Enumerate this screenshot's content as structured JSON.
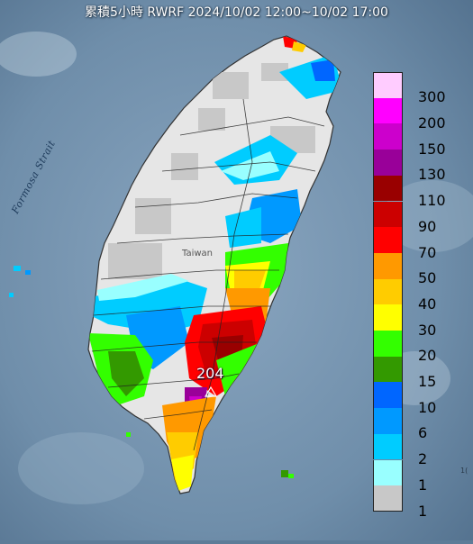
{
  "title": "累積5小時 RWRF 2024/10/02 12:00~10/02 17:00",
  "labels": {
    "strait": "Formosa Strait",
    "island": "Taiwan",
    "peak_value": "204",
    "edge_fragment": "1("
  },
  "legend": [
    {
      "label": "300",
      "color": "#ffccff"
    },
    {
      "label": "200",
      "color": "#ff00ff"
    },
    {
      "label": "150",
      "color": "#cc00cc"
    },
    {
      "label": "130",
      "color": "#990099"
    },
    {
      "label": "110",
      "color": "#990000"
    },
    {
      "label": "90",
      "color": "#cc0000"
    },
    {
      "label": "70",
      "color": "#ff0000"
    },
    {
      "label": "50",
      "color": "#ff9900"
    },
    {
      "label": "40",
      "color": "#ffcc00"
    },
    {
      "label": "30",
      "color": "#ffff00"
    },
    {
      "label": "20",
      "color": "#33ff00"
    },
    {
      "label": "15",
      "color": "#339900"
    },
    {
      "label": "10",
      "color": "#0066ff"
    },
    {
      "label": "6",
      "color": "#0099ff"
    },
    {
      "label": "2",
      "color": "#00ccff"
    },
    {
      "label": "1",
      "color": "#99ffff"
    },
    {
      "label": "1",
      "color": "#c8c8c8"
    }
  ]
}
